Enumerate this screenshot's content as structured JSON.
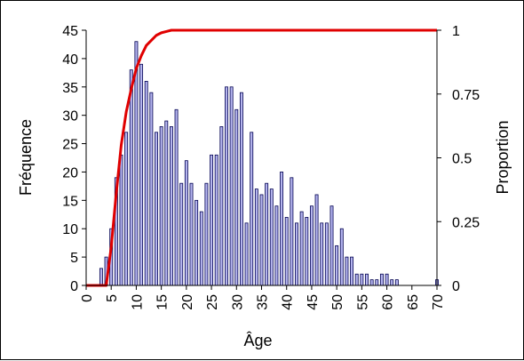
{
  "chart_data": {
    "type": "bar",
    "xlabel": "Âge",
    "ylabel": "Fréquence",
    "y2label": "Proportion",
    "xlim": [
      0,
      70
    ],
    "ylim": [
      0,
      45
    ],
    "y2lim": [
      0,
      1
    ],
    "x_ticks": [
      "0",
      "5",
      "10",
      "15",
      "20",
      "25",
      "30",
      "35",
      "40",
      "45",
      "50",
      "55",
      "60",
      "65",
      "70"
    ],
    "y_ticks": [
      "0",
      "5",
      "10",
      "15",
      "20",
      "25",
      "30",
      "35",
      "40",
      "45"
    ],
    "y2_ticks": [
      "0",
      "0.25",
      "0.5",
      "0.75",
      "1"
    ],
    "grid": false,
    "colors": {
      "bar_fill": "#b4b4ee",
      "bar_edge": "#000050",
      "cdf_line": "#e00000"
    },
    "series": [
      {
        "kind": "bar",
        "x": [
          3,
          4,
          5,
          6,
          7,
          8,
          9,
          10,
          11,
          12,
          13,
          14,
          15,
          16,
          17,
          18,
          19,
          20,
          21,
          22,
          23,
          24,
          25,
          26,
          27,
          28,
          29,
          30,
          31,
          32,
          33,
          34,
          35,
          36,
          37,
          38,
          39,
          40,
          41,
          42,
          43,
          44,
          45,
          46,
          47,
          48,
          49,
          50,
          51,
          52,
          53,
          54,
          55,
          56,
          57,
          58,
          59,
          60,
          61,
          62,
          70
        ],
        "values": [
          3,
          5,
          10,
          19,
          23,
          27,
          38,
          43,
          39,
          36,
          34,
          27,
          28,
          29,
          28,
          31,
          18,
          22,
          18,
          15,
          13,
          18,
          23,
          23,
          28,
          35,
          35,
          31,
          34,
          11,
          27,
          17,
          16,
          18,
          17,
          14,
          20,
          12,
          19,
          11,
          13,
          12,
          14,
          16,
          11,
          11,
          14,
          7,
          10,
          5,
          5,
          2,
          2,
          2,
          1,
          1,
          2,
          2,
          1,
          1,
          1
        ]
      },
      {
        "kind": "line",
        "x": [
          0,
          3,
          4,
          5,
          6,
          7,
          8,
          9,
          10,
          11,
          12,
          13,
          14,
          15,
          16,
          17,
          18,
          19,
          20,
          70
        ],
        "values": [
          0,
          0,
          0,
          0.15,
          0.36,
          0.55,
          0.68,
          0.77,
          0.85,
          0.9,
          0.94,
          0.96,
          0.98,
          0.99,
          0.995,
          1,
          1,
          1,
          1,
          1
        ]
      }
    ]
  }
}
